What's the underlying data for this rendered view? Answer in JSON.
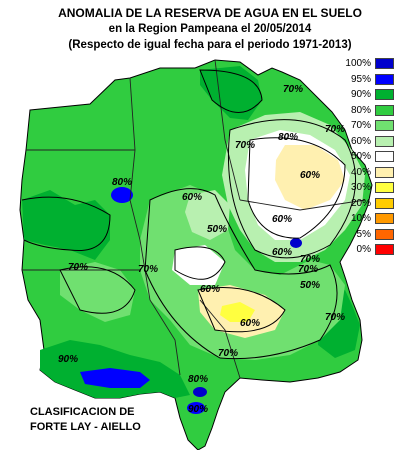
{
  "title": {
    "line1": "ANOMALIA DE LA RESERVA DE AGUA EN EL SUELO",
    "line2": "en la Region Pampeana el 20/05/2014",
    "line3": "(Respecto de igual fecha para el periodo 1971-2013)"
  },
  "legend": [
    {
      "label": "100%",
      "color": "#0000cc"
    },
    {
      "label": "95%",
      "color": "#0000ff"
    },
    {
      "label": "90%",
      "color": "#00b030"
    },
    {
      "label": "80%",
      "color": "#30cc40"
    },
    {
      "label": "70%",
      "color": "#70e070"
    },
    {
      "label": "60%",
      "color": "#b8f0b0"
    },
    {
      "label": "50%",
      "color": "#ffffff"
    },
    {
      "label": "40%",
      "color": "#fff0b0"
    },
    {
      "label": "30%",
      "color": "#ffff40"
    },
    {
      "label": "20%",
      "color": "#ffcc00"
    },
    {
      "label": "10%",
      "color": "#ff9900"
    },
    {
      "label": "5%",
      "color": "#ff6600"
    },
    {
      "label": "0%",
      "color": "#ff0000"
    }
  ],
  "contour_labels": [
    "70%",
    "70%",
    "80%",
    "70%",
    "80%",
    "60%",
    "50%",
    "60%",
    "60%",
    "60%",
    "70%",
    "50%",
    "70%",
    "70%",
    "60%",
    "70%",
    "90%",
    "70%",
    "80%",
    "90%",
    "60%",
    "70%"
  ],
  "credit": {
    "line1": "CLASIFICACION DE",
    "line2": "FORTE LAY - AIELLO"
  }
}
